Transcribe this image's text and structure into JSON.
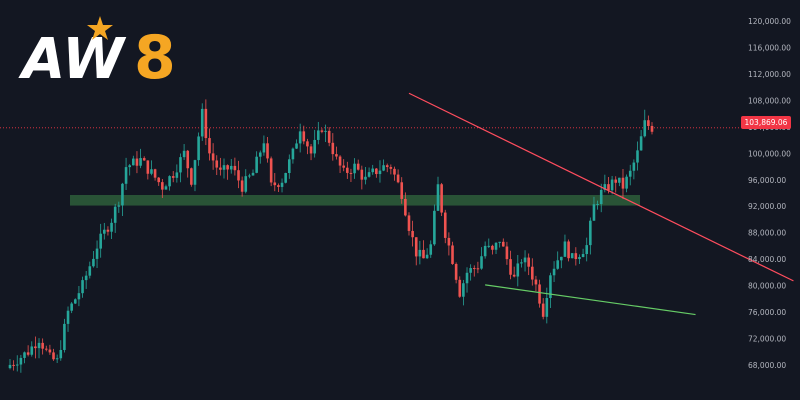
{
  "logo": {
    "text": "AW8",
    "star_color": "#f5a623",
    "eight_color": "#f5a623",
    "aw_color": "#ffffff"
  },
  "colors": {
    "background": "#131722",
    "up": "#26a69a",
    "down": "#ef5350",
    "support_zone": "#2e5e3a",
    "resistance_line": "#ff4d5e",
    "support_line": "#66cc66",
    "current_price_tag": "#f23645",
    "axis_text": "#b2b5be"
  },
  "price_tag": "103,869.06",
  "chart_data": {
    "type": "candlestick",
    "title": "",
    "ylim": [
      65700,
      122000
    ],
    "y_ticks": [
      "120,000.00",
      "116,000.00",
      "112,000.00",
      "108,000.00",
      "104,000.00",
      "100,000.00",
      "96,000.00",
      "92,000.00",
      "88,000.00",
      "84,000.00",
      "80,000.00",
      "76,000.00",
      "72,000.00",
      "68,000.00"
    ],
    "grid": false,
    "current_price": 103869.06,
    "anchors": [
      [
        0,
        68000
      ],
      [
        5,
        70000
      ],
      [
        8,
        72000
      ],
      [
        11,
        69000
      ],
      [
        13,
        68500
      ],
      [
        16,
        76000
      ],
      [
        20,
        80000
      ],
      [
        24,
        86000
      ],
      [
        28,
        90000
      ],
      [
        30,
        93000
      ],
      [
        32,
        98000
      ],
      [
        36,
        99000
      ],
      [
        39,
        97000
      ],
      [
        42,
        95000
      ],
      [
        45,
        97000
      ],
      [
        48,
        100000
      ],
      [
        50,
        96000
      ],
      [
        53,
        106000
      ],
      [
        55,
        100000
      ],
      [
        58,
        97000
      ],
      [
        61,
        98000
      ],
      [
        64,
        95000
      ],
      [
        67,
        97000
      ],
      [
        70,
        102000
      ],
      [
        72,
        95000
      ],
      [
        75,
        96000
      ],
      [
        78,
        100000
      ],
      [
        80,
        104000
      ],
      [
        83,
        100000
      ],
      [
        86,
        104000
      ],
      [
        88,
        102000
      ],
      [
        90,
        99000
      ],
      [
        92,
        97000
      ],
      [
        95,
        98000
      ],
      [
        98,
        96000
      ],
      [
        100,
        97000
      ],
      [
        103,
        98000
      ],
      [
        105,
        98000
      ],
      [
        108,
        94000
      ],
      [
        110,
        89000
      ],
      [
        112,
        85000
      ],
      [
        114,
        84000
      ],
      [
        116,
        86000
      ],
      [
        118,
        95000
      ],
      [
        120,
        88000
      ],
      [
        122,
        84000
      ],
      [
        124,
        79000
      ],
      [
        126,
        82000
      ],
      [
        129,
        83000
      ],
      [
        131,
        86000
      ],
      [
        133,
        85000
      ],
      [
        135,
        87000
      ],
      [
        137,
        84000
      ],
      [
        139,
        81000
      ],
      [
        141,
        84000
      ],
      [
        143,
        83000
      ],
      [
        145,
        80000
      ],
      [
        147,
        76000
      ],
      [
        149,
        82000
      ],
      [
        151,
        84000
      ],
      [
        153,
        86000
      ],
      [
        155,
        84000
      ],
      [
        157,
        85000
      ],
      [
        159,
        86000
      ],
      [
        161,
        92000
      ],
      [
        163,
        94000
      ],
      [
        165,
        95000
      ],
      [
        167,
        96000
      ],
      [
        169,
        95000
      ],
      [
        171,
        97000
      ],
      [
        173,
        100000
      ],
      [
        175,
        104500
      ],
      [
        177,
        103900
      ]
    ],
    "resistance_line": {
      "start": [
        -67,
        109100
      ],
      "end": [
        39,
        80700
      ]
    },
    "support_line": {
      "start": [
        -46,
        80100
      ],
      "end": [
        12,
        75600
      ]
    },
    "support_zone": {
      "from": 92100,
      "to": 93700
    }
  }
}
